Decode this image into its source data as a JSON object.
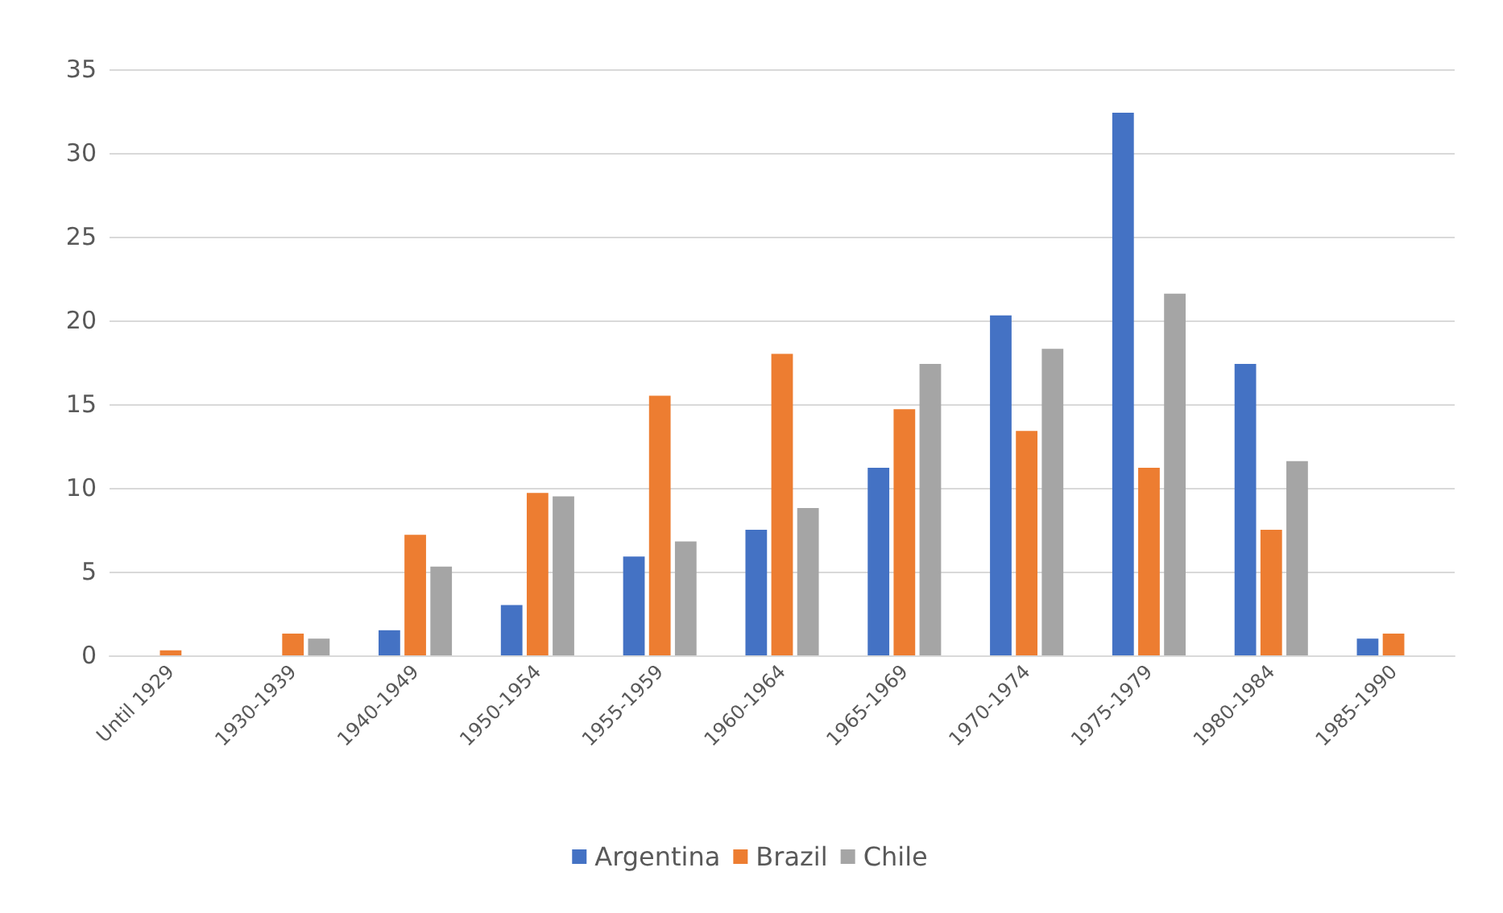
{
  "chart_data": {
    "type": "bar",
    "categories": [
      "Until 1929",
      "1930-1939",
      "1940-1949",
      "1950-1954",
      "1955-1959",
      "1960-1964",
      "1965-1969",
      "1970-1974",
      "1975-1979",
      "1980-1984",
      "1985-1990"
    ],
    "series": [
      {
        "name": "Argentina",
        "color": "#4472c4",
        "values": [
          0,
          0,
          1.5,
          3.0,
          5.9,
          7.5,
          11.2,
          20.3,
          32.4,
          17.4,
          1.0
        ]
      },
      {
        "name": "Brazil",
        "color": "#ed7d31",
        "values": [
          0.3,
          1.3,
          7.2,
          9.7,
          15.5,
          18.0,
          14.7,
          13.4,
          11.2,
          7.5,
          1.3
        ]
      },
      {
        "name": "Chile",
        "color": "#a5a5a5",
        "values": [
          0,
          1.0,
          5.3,
          9.5,
          6.8,
          8.8,
          17.4,
          18.3,
          21.6,
          11.6,
          0
        ]
      }
    ],
    "ylim": [
      0,
      35
    ],
    "yticks": [
      0,
      5,
      10,
      15,
      20,
      25,
      30,
      35
    ],
    "grid": "y",
    "legend": "bottom"
  }
}
